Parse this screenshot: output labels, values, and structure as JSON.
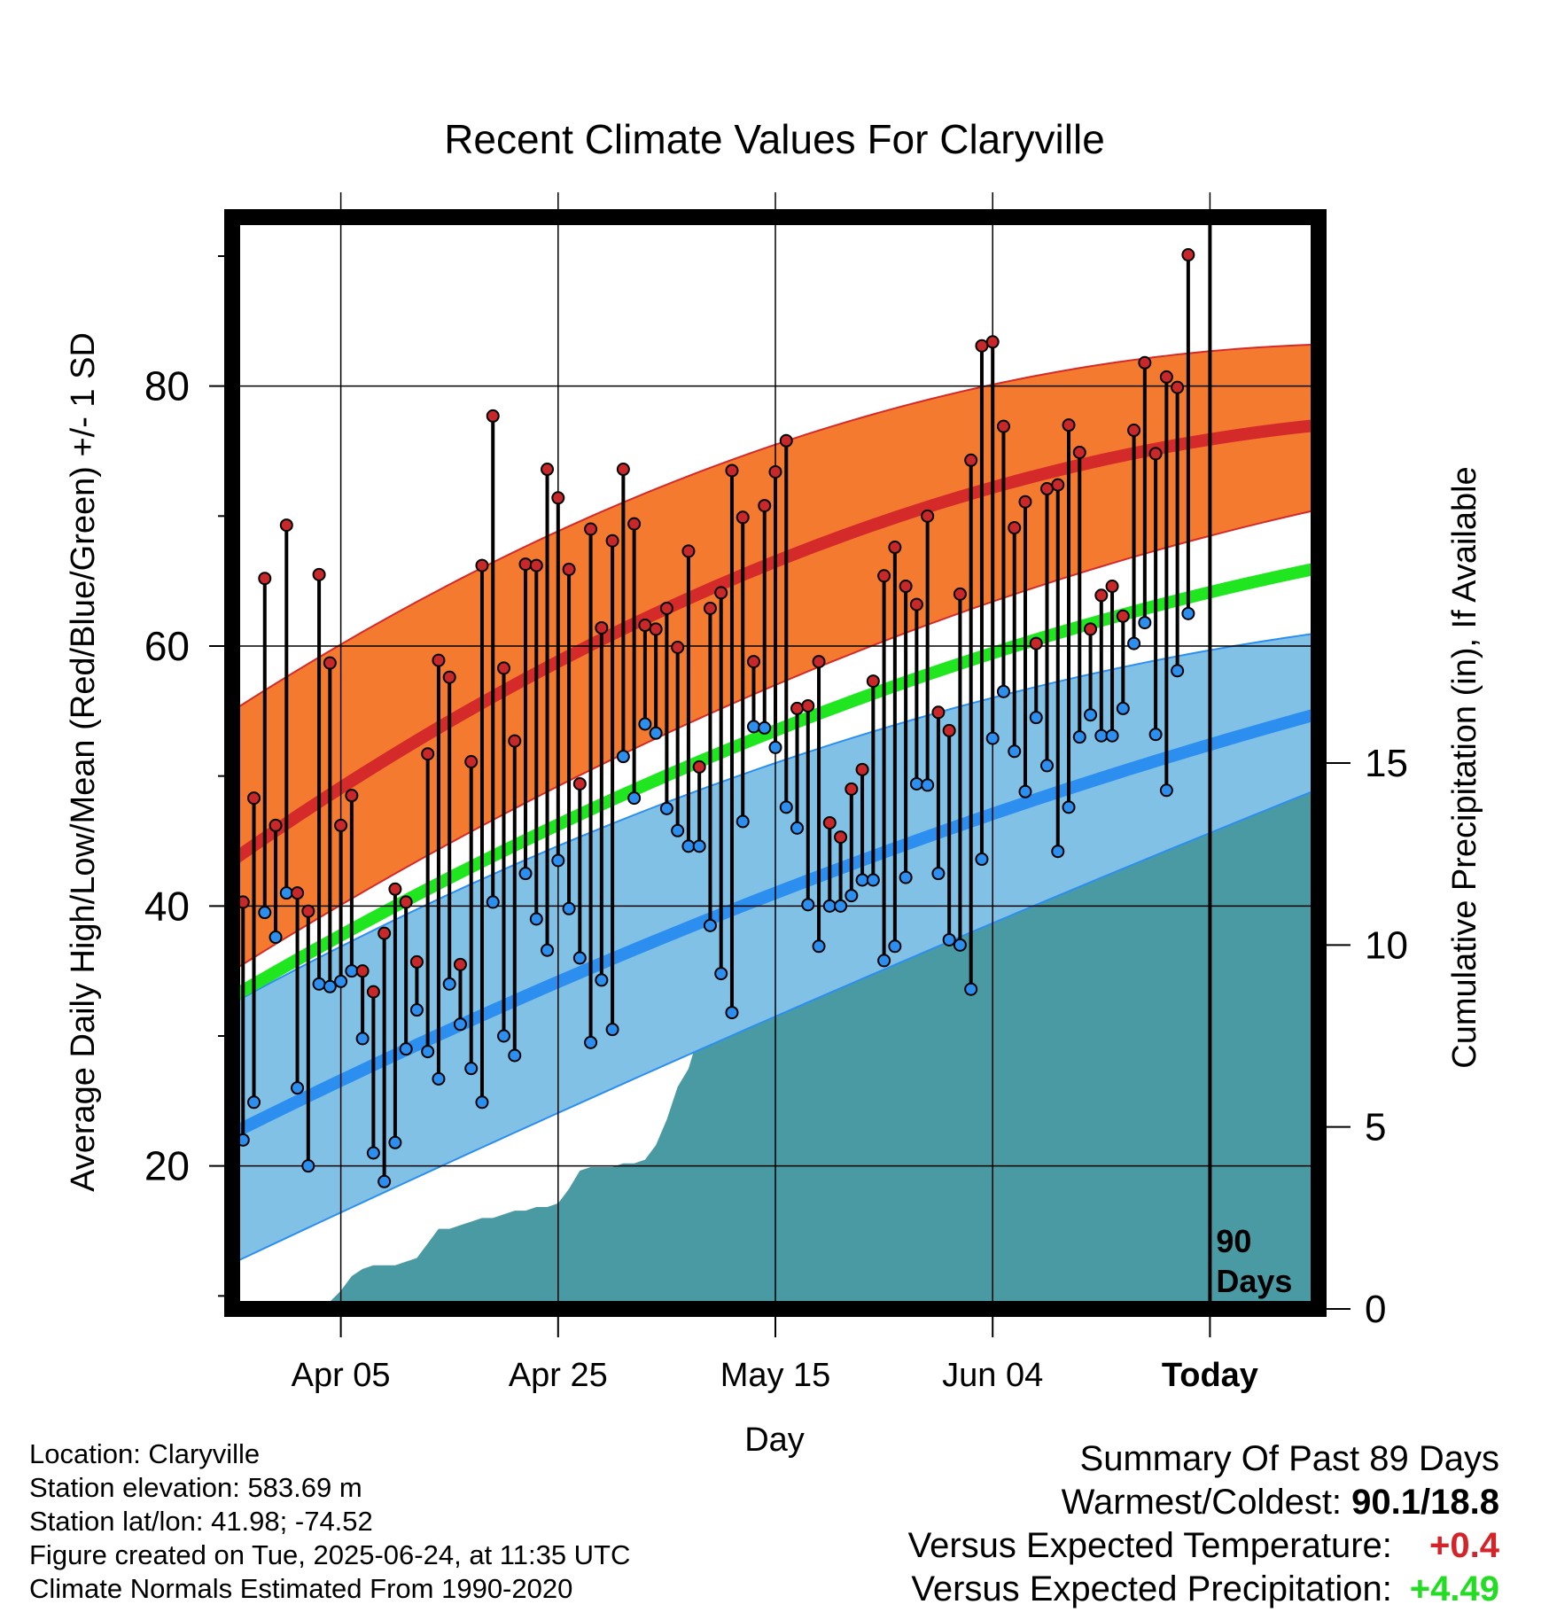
{
  "chart_data": {
    "type": "line",
    "title": "Recent Climate Values For Claryville",
    "xlabel": "Day",
    "ylabel_left": "Average Daily High/Low/Mean (Red/Blue/Green) +/- 1 SD",
    "ylabel_right": "Cumulative Precipitation (in), If Available",
    "x_start_date": "2025-03-26",
    "x_today_label": "Today",
    "x_ticks": [
      {
        "date": "2025-04-05",
        "label": "Apr 05"
      },
      {
        "date": "2025-04-25",
        "label": "Apr 25"
      },
      {
        "date": "2025-05-15",
        "label": "May 15"
      },
      {
        "date": "2025-06-04",
        "label": "Jun 04"
      },
      {
        "date": "2025-06-24",
        "label": "Today"
      }
    ],
    "xlim": [
      "2025-03-26",
      "2025-07-04"
    ],
    "ylim_temp": [
      9,
      93
    ],
    "y_ticks_temp": [
      20,
      40,
      60,
      80
    ],
    "y_minor_ticks_temp": [
      10,
      30,
      50,
      70,
      90
    ],
    "ylim_precip": [
      0,
      30
    ],
    "y_ticks_precip": [
      0,
      5,
      10,
      15
    ],
    "today_marker": {
      "date": "2025-06-24",
      "label_line1": "90",
      "label_line2": "Days"
    },
    "grid": true,
    "colors": {
      "high_band": "#f47a30",
      "high_mean": "#d42a2a",
      "low_band": "#82c1e6",
      "low_mean": "#2c8ff0",
      "mean_line": "#1fe61f",
      "precip": "#4a9aa4",
      "high_dot": "#c8282a",
      "low_dot": "#2c8ff0"
    },
    "normals": {
      "high_mean": [
        43.5,
        66.5,
        77.0
      ],
      "high_upper": [
        55.0,
        75.5,
        83.2
      ],
      "high_lower": [
        35.0,
        57.0,
        70.5
      ],
      "low_mean": [
        22.5,
        41.0,
        54.8
      ],
      "low_upper": [
        32.5,
        51.0,
        61.0
      ],
      "low_lower": [
        12.5,
        31.5,
        49.0
      ],
      "mean_line": [
        33.0,
        53.5,
        66.0
      ]
    },
    "daily_highs": [
      36.9,
      40.3,
      48.3,
      65.2,
      46.2,
      69.3,
      41.0,
      39.6,
      65.5,
      58.7,
      46.2,
      48.5,
      35.0,
      33.4,
      37.9,
      41.3,
      40.3,
      35.7,
      51.7,
      58.9,
      57.6,
      35.5,
      51.1,
      66.2,
      77.7,
      58.3,
      52.7,
      66.3,
      66.2,
      73.6,
      71.4,
      65.9,
      49.4,
      69.0,
      61.4,
      68.1,
      73.6,
      69.4,
      61.6,
      61.3,
      62.9,
      59.9,
      67.3,
      50.7,
      62.9,
      64.1,
      73.5,
      69.9,
      58.8,
      70.8,
      73.4,
      75.8,
      55.2,
      55.4,
      58.8,
      46.4,
      45.3,
      49.0,
      50.5,
      57.3,
      65.4,
      67.6,
      64.6,
      63.2,
      70.0,
      54.9,
      53.5,
      64.0,
      74.3,
      83.1,
      83.4,
      76.9,
      69.1,
      71.1,
      60.2,
      72.1,
      72.4,
      77.0,
      74.9,
      61.3,
      63.9,
      64.6,
      62.3,
      76.6,
      81.8,
      74.8,
      80.7,
      79.9,
      90.1
    ],
    "daily_lows": [
      20.3,
      22.0,
      24.9,
      39.5,
      37.6,
      41.0,
      26.0,
      20.0,
      34.0,
      33.8,
      34.2,
      35.0,
      29.8,
      21.0,
      18.8,
      21.8,
      29.0,
      32.0,
      28.8,
      26.7,
      34.0,
      30.9,
      27.5,
      24.9,
      40.3,
      30.0,
      28.5,
      42.5,
      39.0,
      36.6,
      43.5,
      39.8,
      36.0,
      29.5,
      34.3,
      30.5,
      51.5,
      48.3,
      54.0,
      53.3,
      47.5,
      45.8,
      44.6,
      44.6,
      38.5,
      34.8,
      31.8,
      46.5,
      53.8,
      53.7,
      52.2,
      47.6,
      46.0,
      40.1,
      36.9,
      40.0,
      40.0,
      40.8,
      42.0,
      42.0,
      35.8,
      36.9,
      42.2,
      49.4,
      49.3,
      42.5,
      37.4,
      37.0,
      33.6,
      43.6,
      52.9,
      56.5,
      51.9,
      48.8,
      54.5,
      50.8,
      44.2,
      47.6,
      53.0,
      54.7,
      53.1,
      53.1,
      55.2,
      60.2,
      61.8,
      53.2,
      48.9,
      58.1,
      62.5
    ],
    "cumulative_precip": [
      [
        0,
        0.0
      ],
      [
        7,
        0.0
      ],
      [
        8,
        0.1
      ],
      [
        9,
        0.2
      ],
      [
        10,
        0.5
      ],
      [
        11,
        0.9
      ],
      [
        12,
        1.1
      ],
      [
        13,
        1.2
      ],
      [
        14,
        1.2
      ],
      [
        15,
        1.2
      ],
      [
        16,
        1.3
      ],
      [
        17,
        1.4
      ],
      [
        18,
        1.8
      ],
      [
        19,
        2.2
      ],
      [
        20,
        2.2
      ],
      [
        21,
        2.3
      ],
      [
        22,
        2.4
      ],
      [
        23,
        2.5
      ],
      [
        24,
        2.5
      ],
      [
        25,
        2.6
      ],
      [
        26,
        2.7
      ],
      [
        27,
        2.7
      ],
      [
        28,
        2.8
      ],
      [
        29,
        2.8
      ],
      [
        30,
        2.9
      ],
      [
        31,
        3.3
      ],
      [
        32,
        3.8
      ],
      [
        33,
        3.9
      ],
      [
        34,
        3.9
      ],
      [
        35,
        3.9
      ],
      [
        36,
        4.0
      ],
      [
        37,
        4.0
      ],
      [
        38,
        4.1
      ],
      [
        39,
        4.5
      ],
      [
        40,
        5.2
      ],
      [
        41,
        6.1
      ],
      [
        42,
        6.6
      ],
      [
        43,
        7.6
      ],
      [
        44,
        7.6
      ],
      [
        45,
        8.0
      ],
      [
        46,
        9.2
      ],
      [
        47,
        9.3
      ],
      [
        48,
        9.4
      ],
      [
        49,
        9.4
      ],
      [
        50,
        9.5
      ],
      [
        51,
        9.9
      ],
      [
        52,
        10.0
      ],
      [
        53,
        10.1
      ],
      [
        54,
        10.2
      ],
      [
        55,
        10.3
      ],
      [
        56,
        10.3
      ],
      [
        57,
        10.4
      ],
      [
        58,
        10.5
      ],
      [
        59,
        10.5
      ],
      [
        60,
        10.7
      ],
      [
        61,
        10.9
      ],
      [
        62,
        11.1
      ],
      [
        63,
        11.3
      ],
      [
        64,
        11.3
      ],
      [
        65,
        11.3
      ],
      [
        66,
        11.3
      ],
      [
        67,
        11.3
      ],
      [
        68,
        11.5
      ],
      [
        69,
        12.4
      ],
      [
        70,
        13.3
      ],
      [
        71,
        13.5
      ],
      [
        72,
        13.6
      ],
      [
        73,
        13.6
      ],
      [
        74,
        13.6
      ],
      [
        75,
        13.8
      ],
      [
        76,
        14.1
      ],
      [
        77,
        14.2
      ],
      [
        78,
        14.6
      ],
      [
        79,
        14.8
      ],
      [
        80,
        14.8
      ],
      [
        81,
        14.8
      ],
      [
        82,
        15.0
      ],
      [
        83,
        15.2
      ],
      [
        84,
        15.3
      ],
      [
        85,
        16.0
      ],
      [
        86,
        16.5
      ],
      [
        87,
        16.6
      ],
      [
        88,
        17.0
      ],
      [
        89,
        17.1
      ],
      [
        90,
        17.1
      ],
      [
        91,
        17.1
      ],
      [
        100,
        17.1
      ]
    ]
  },
  "footer_left": {
    "location": "Location: Claryville",
    "elevation": "Station elevation: 583.69 m",
    "latlon": "Station lat/lon: 41.98; -74.52",
    "created": "Figure created on Tue, 2025-06-24, at 11:35 UTC",
    "normals": "Climate Normals Estimated From 1990-2020"
  },
  "summary": {
    "title": "Summary Of Past 89 Days",
    "warmest_label": "Warmest/Coldest:",
    "warmest_value": "90.1/18.8",
    "temp_label": "Versus Expected Temperature:",
    "temp_value": "+0.4",
    "precip_label": "Versus Expected Precipitation:",
    "precip_value": "+4.49"
  }
}
